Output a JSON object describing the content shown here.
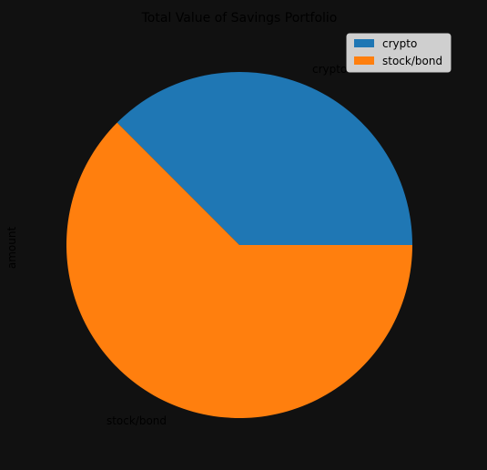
{
  "chart_data": {
    "type": "pie",
    "title": "Total Value of Savings Portfolio",
    "ylabel": "amount",
    "labels": [
      "crypto",
      "stock/bond"
    ],
    "values": [
      37.5,
      62.5
    ],
    "colors": [
      "#1f77b4",
      "#ff7f0e"
    ],
    "start_angle_deg": 0,
    "direction": "counterclockwise",
    "legend": {
      "placement": "upper-right",
      "entries": [
        "crypto",
        "stock/bond"
      ]
    }
  },
  "colors": {
    "background": "#111111",
    "legend_bg": "#ffffff",
    "text": "#000000"
  }
}
